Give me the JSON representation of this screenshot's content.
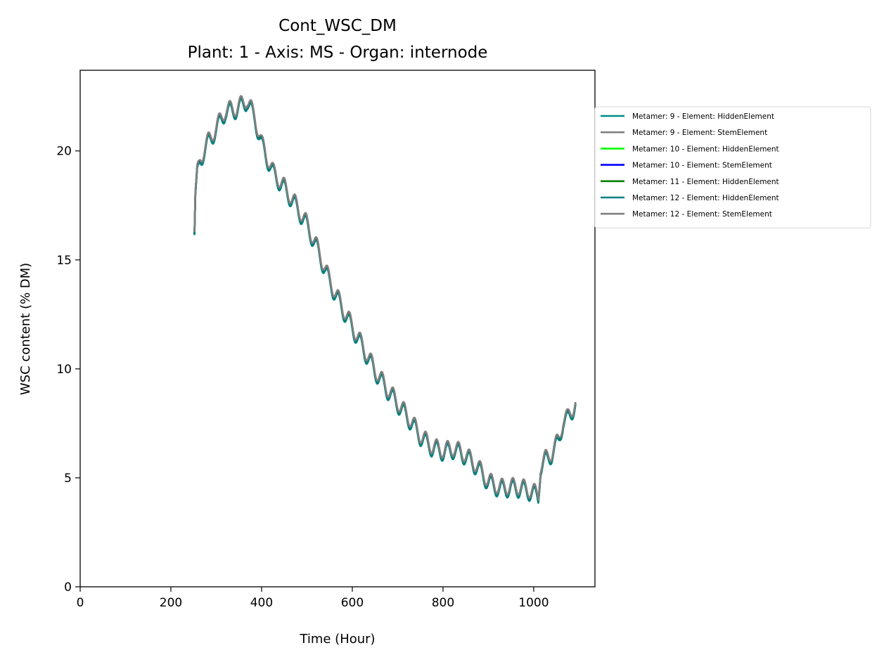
{
  "chart_data": {
    "type": "line",
    "title": "Cont_WSC_DM",
    "subtitle": "Plant: 1 - Axis: MS - Organ: internode",
    "xlabel": "Time (Hour)",
    "ylabel": "WSC content (% DM)",
    "xlim": [
      0,
      1135
    ],
    "ylim": [
      0,
      23.7
    ],
    "xticks": [
      0,
      200,
      400,
      600,
      800,
      1000
    ],
    "yticks": [
      0,
      5,
      10,
      15,
      20
    ],
    "grid": false,
    "legend_position": "outside-right",
    "diurnal_amplitude": 0.38,
    "diurnal_period": 24,
    "trend": {
      "x": [
        252,
        254,
        258,
        265,
        280,
        300,
        320,
        345,
        368,
        385,
        400,
        425,
        450,
        475,
        500,
        525,
        550,
        575,
        600,
        625,
        650,
        675,
        700,
        725,
        750,
        775,
        800,
        825,
        850,
        875,
        900,
        925,
        950,
        975,
        1000,
        1010,
        1015,
        1025,
        1040,
        1055,
        1065,
        1075,
        1085,
        1092
      ],
      "y": [
        16.2,
        18.0,
        18.9,
        19.6,
        20.3,
        21.0,
        21.8,
        21.9,
        22.3,
        21.5,
        20.3,
        19.0,
        18.3,
        17.5,
        16.6,
        15.4,
        14.0,
        12.9,
        11.9,
        10.9,
        9.9,
        9.1,
        8.4,
        7.7,
        6.9,
        6.4,
        6.2,
        6.3,
        6.0,
        5.5,
        4.8,
        4.5,
        4.55,
        4.5,
        4.3,
        4.1,
        5.5,
        5.8,
        6.1,
        6.7,
        7.6,
        7.7,
        8.1,
        8.4
      ]
    },
    "series": [
      {
        "name": "Metamer: 9 - Element: HiddenElement",
        "color": "#008b8b",
        "offset": -0.04
      },
      {
        "name": "Metamer: 9 - Element: StemElement",
        "color": "#808080",
        "offset": 0.06
      },
      {
        "name": "Metamer: 10 - Element: HiddenElement",
        "color": "#00ff00",
        "offset": -0.02
      },
      {
        "name": "Metamer: 10 - Element: StemElement",
        "color": "#0000ff",
        "offset": 0.0
      },
      {
        "name": "Metamer: 11 - Element: HiddenElement",
        "color": "#008000",
        "offset": -0.03
      },
      {
        "name": "Metamer: 12 - Element: HiddenElement",
        "color": "#008080",
        "offset": -0.06
      },
      {
        "name": "Metamer: 12 - Element: StemElement",
        "color": "#808080",
        "offset": 0.08
      }
    ]
  }
}
